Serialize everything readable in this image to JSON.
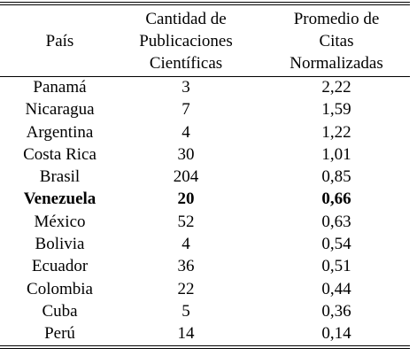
{
  "table": {
    "headers": {
      "country": [
        "País"
      ],
      "pubs": [
        "Cantidad de",
        "Publicaciones",
        "Científicas"
      ],
      "cites": [
        "Promedio de",
        "Citas",
        "Normalizadas"
      ]
    },
    "rows": [
      {
        "country": "Panamá",
        "pubs": "3",
        "cites": "2,22",
        "bold": false
      },
      {
        "country": "Nicaragua",
        "pubs": "7",
        "cites": "1,59",
        "bold": false
      },
      {
        "country": "Argentina",
        "pubs": "4",
        "cites": "1,22",
        "bold": false
      },
      {
        "country": "Costa Rica",
        "pubs": "30",
        "cites": "1,01",
        "bold": false
      },
      {
        "country": "Brasil",
        "pubs": "204",
        "cites": "0,85",
        "bold": false
      },
      {
        "country": "Venezuela",
        "pubs": "20",
        "cites": "0,66",
        "bold": true
      },
      {
        "country": "México",
        "pubs": "52",
        "cites": "0,63",
        "bold": false
      },
      {
        "country": "Bolivia",
        "pubs": "4",
        "cites": "0,54",
        "bold": false
      },
      {
        "country": "Ecuador",
        "pubs": "36",
        "cites": "0,51",
        "bold": false
      },
      {
        "country": "Colombia",
        "pubs": "22",
        "cites": "0,44",
        "bold": false
      },
      {
        "country": "Cuba",
        "pubs": "5",
        "cites": "0,36",
        "bold": false
      },
      {
        "country": "Perú",
        "pubs": "14",
        "cites": "0,14",
        "bold": false
      }
    ]
  }
}
